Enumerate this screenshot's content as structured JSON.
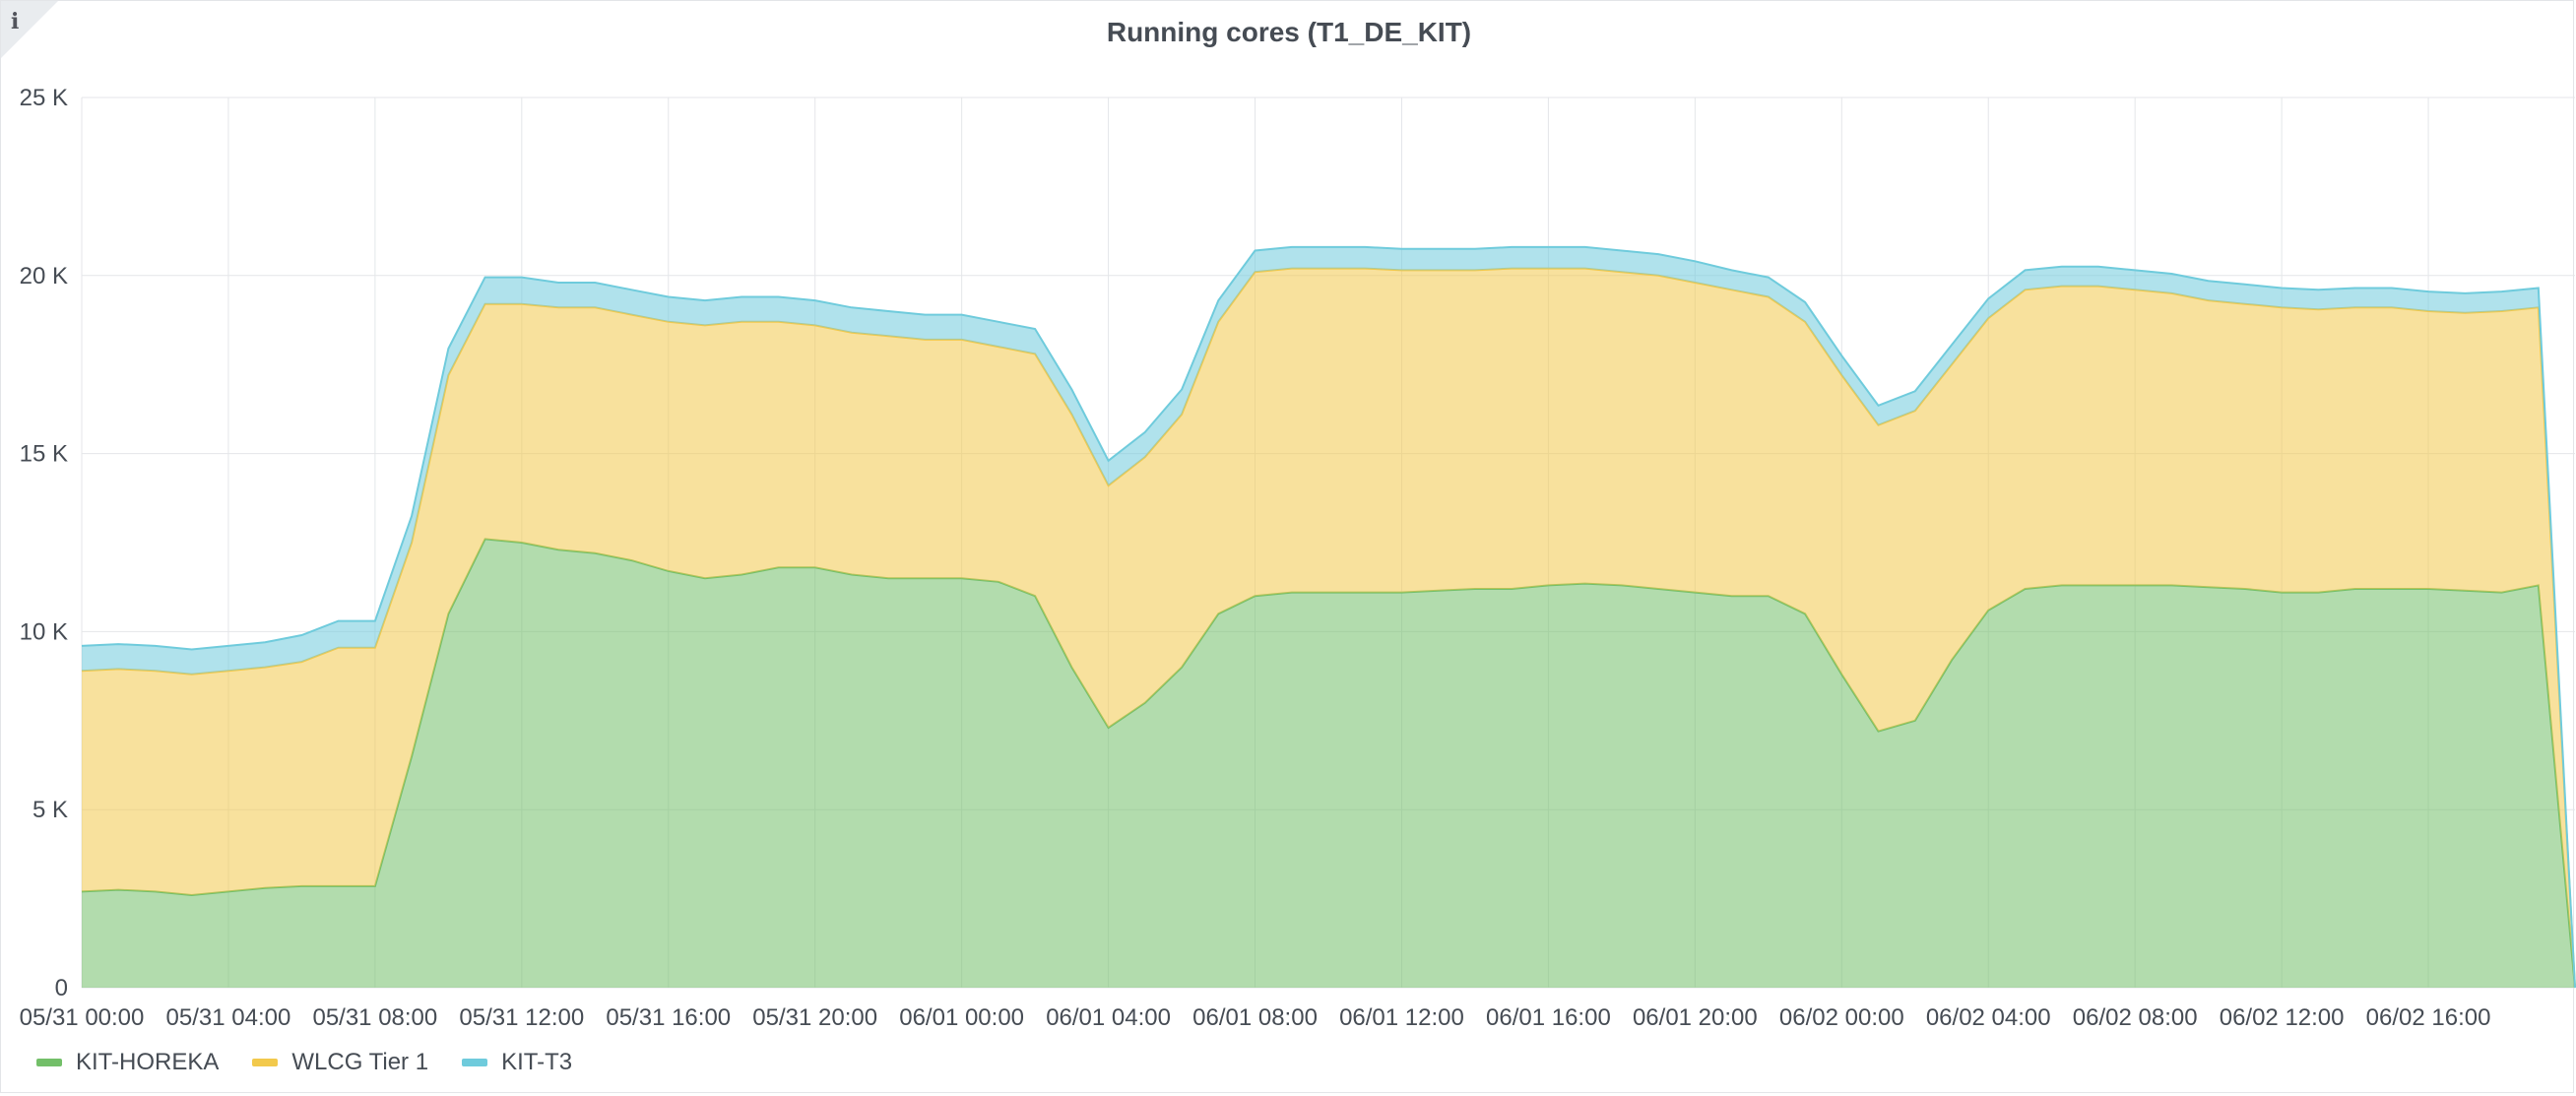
{
  "panel": {
    "info_icon": "info-icon"
  },
  "chart_data": {
    "type": "area",
    "stacked": true,
    "title": "Running cores (T1_DE_KIT)",
    "xlabel": "",
    "ylabel": "",
    "ylim": [
      0,
      25000
    ],
    "y_ticks": [
      "0",
      "5 K",
      "10 K",
      "15 K",
      "20 K",
      "25 K"
    ],
    "x_range": [
      "05/31 00:00",
      "06/02 20:00"
    ],
    "x_ticks": [
      "05/31 00:00",
      "05/31 04:00",
      "05/31 08:00",
      "05/31 12:00",
      "05/31 16:00",
      "05/31 20:00",
      "06/01 00:00",
      "06/01 04:00",
      "06/01 08:00",
      "06/01 12:00",
      "06/01 16:00",
      "06/01 20:00",
      "06/02 00:00",
      "06/02 04:00",
      "06/02 08:00",
      "06/02 12:00",
      "06/02 16:00"
    ],
    "grid": true,
    "legend_position": "bottom-left",
    "x": [
      "05/31 00:00",
      "05/31 01:00",
      "05/31 02:00",
      "05/31 03:00",
      "05/31 04:00",
      "05/31 05:00",
      "05/31 06:00",
      "05/31 07:00",
      "05/31 08:00",
      "05/31 09:00",
      "05/31 10:00",
      "05/31 11:00",
      "05/31 12:00",
      "05/31 13:00",
      "05/31 14:00",
      "05/31 15:00",
      "05/31 16:00",
      "05/31 17:00",
      "05/31 18:00",
      "05/31 19:00",
      "05/31 20:00",
      "05/31 21:00",
      "05/31 22:00",
      "05/31 23:00",
      "06/01 00:00",
      "06/01 01:00",
      "06/01 02:00",
      "06/01 03:00",
      "06/01 04:00",
      "06/01 05:00",
      "06/01 06:00",
      "06/01 07:00",
      "06/01 08:00",
      "06/01 09:00",
      "06/01 10:00",
      "06/01 11:00",
      "06/01 12:00",
      "06/01 13:00",
      "06/01 14:00",
      "06/01 15:00",
      "06/01 16:00",
      "06/01 17:00",
      "06/01 18:00",
      "06/01 19:00",
      "06/01 20:00",
      "06/01 21:00",
      "06/01 22:00",
      "06/01 23:00",
      "06/02 00:00",
      "06/02 01:00",
      "06/02 02:00",
      "06/02 03:00",
      "06/02 04:00",
      "06/02 05:00",
      "06/02 06:00",
      "06/02 07:00",
      "06/02 08:00",
      "06/02 09:00",
      "06/02 10:00",
      "06/02 11:00",
      "06/02 12:00",
      "06/02 13:00",
      "06/02 14:00",
      "06/02 15:00",
      "06/02 16:00",
      "06/02 17:00",
      "06/02 18:00",
      "06/02 19:00",
      "06/02 20:00"
    ],
    "series": [
      {
        "name": "KIT-HOREKA",
        "color": "#73bf69",
        "values": [
          2700,
          2750,
          2700,
          2600,
          2700,
          2800,
          2850,
          2850,
          2850,
          6500,
          10500,
          12600,
          12500,
          12300,
          12200,
          12000,
          11700,
          11500,
          11600,
          11800,
          11800,
          11600,
          11500,
          11500,
          11500,
          11400,
          11000,
          9000,
          7300,
          8000,
          9000,
          10500,
          11000,
          11100,
          11100,
          11100,
          11100,
          11150,
          11200,
          11200,
          11300,
          11350,
          11300,
          11200,
          11100,
          11000,
          11000,
          10500,
          8800,
          7200,
          7500,
          9200,
          10600,
          11200,
          11300,
          11300,
          11300,
          11300,
          11250,
          11200,
          11100,
          11100,
          11200,
          11200,
          11200,
          11150,
          11100,
          11300,
          0
        ]
      },
      {
        "name": "WLCG Tier 1",
        "color": "#f2c94c",
        "values": [
          6200,
          6200,
          6200,
          6200,
          6200,
          6200,
          6300,
          6700,
          6700,
          6000,
          6700,
          6600,
          6700,
          6800,
          6900,
          6900,
          7000,
          7100,
          7100,
          6900,
          6800,
          6800,
          6800,
          6700,
          6700,
          6600,
          6800,
          7100,
          6800,
          6900,
          7100,
          8200,
          9100,
          9100,
          9100,
          9100,
          9050,
          9000,
          8950,
          9000,
          8900,
          8850,
          8800,
          8800,
          8700,
          8600,
          8400,
          8200,
          8400,
          8600,
          8700,
          8300,
          8200,
          8400,
          8400,
          8400,
          8300,
          8200,
          8050,
          8000,
          8000,
          7950,
          7900,
          7900,
          7800,
          7800,
          7900,
          7800,
          0
        ]
      },
      {
        "name": "KIT-T3",
        "color": "#6fcbdc",
        "values": [
          700,
          700,
          700,
          700,
          700,
          700,
          750,
          750,
          750,
          750,
          750,
          750,
          750,
          700,
          700,
          700,
          700,
          700,
          700,
          700,
          700,
          700,
          700,
          700,
          700,
          700,
          700,
          700,
          700,
          700,
          700,
          600,
          600,
          600,
          600,
          600,
          600,
          600,
          600,
          600,
          600,
          600,
          600,
          600,
          600,
          550,
          550,
          550,
          550,
          550,
          550,
          550,
          550,
          550,
          550,
          550,
          550,
          550,
          550,
          550,
          550,
          550,
          550,
          550,
          550,
          550,
          550,
          550,
          0
        ]
      }
    ]
  }
}
